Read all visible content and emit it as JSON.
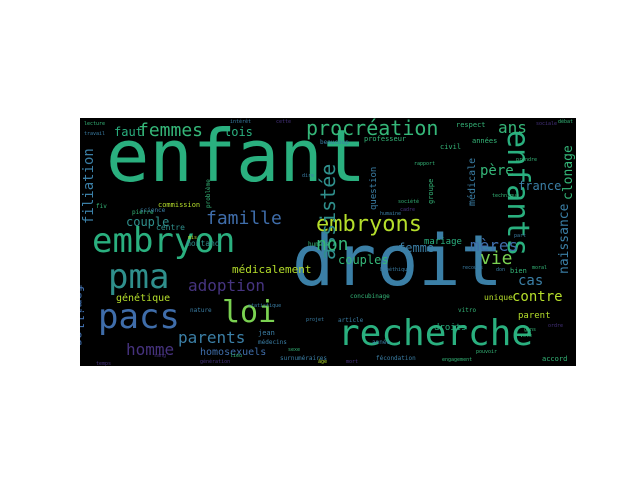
{
  "colors": {
    "background": "#000000",
    "page": "#ffffff"
  },
  "words": [
    {
      "text": "enfant",
      "size": 72,
      "color": "#2ab07f"
    },
    {
      "text": "droit",
      "size": 70,
      "color": "#3b7fa6"
    },
    {
      "text": "recherche",
      "size": 36,
      "color": "#2ab07f"
    },
    {
      "text": "embryon",
      "size": 34,
      "color": "#2ab07f"
    },
    {
      "text": "pacs",
      "size": 34,
      "color": "#3f6daa"
    },
    {
      "text": "pma",
      "size": 34,
      "color": "#2f8f8c"
    },
    {
      "text": "loi",
      "size": 30,
      "color": "#7ad151"
    },
    {
      "text": "enfants",
      "size": 30,
      "color": "#2ab07f"
    },
    {
      "text": "embryons",
      "size": 22,
      "color": "#b5de2b"
    },
    {
      "text": "procréation",
      "size": 20,
      "color": "#35b779"
    },
    {
      "text": "femmes",
      "size": 18,
      "color": "#35b779"
    },
    {
      "text": "famille",
      "size": 18,
      "color": "#3f6daa"
    },
    {
      "text": "assistée",
      "size": 20,
      "color": "#2f8f8c"
    },
    {
      "text": "vie",
      "size": 18,
      "color": "#7ad151"
    },
    {
      "text": "non",
      "size": 18,
      "color": "#35b779"
    },
    {
      "text": "mères",
      "size": 16,
      "color": "#3f6daa"
    },
    {
      "text": "adoption",
      "size": 16,
      "color": "#463480"
    },
    {
      "text": "parents",
      "size": 16,
      "color": "#3b7fa6"
    },
    {
      "text": "homme",
      "size": 16,
      "color": "#46327e"
    },
    {
      "text": "ans",
      "size": 16,
      "color": "#35b779"
    },
    {
      "text": "père",
      "size": 14,
      "color": "#35b779"
    },
    {
      "text": "cas",
      "size": 14,
      "color": "#3b7fa6"
    },
    {
      "text": "contre",
      "size": 14,
      "color": "#b5de2b"
    },
    {
      "text": "filiation",
      "size": 14,
      "color": "#3b7fa6"
    },
    {
      "text": "familles",
      "size": 13,
      "color": "#3f6daa"
    },
    {
      "text": "clonage",
      "size": 13,
      "color": "#35b779"
    },
    {
      "text": "naissance",
      "size": 13,
      "color": "#3b7fa6"
    },
    {
      "text": "faut",
      "size": 12,
      "color": "#2ab07f"
    },
    {
      "text": "lois",
      "size": 12,
      "color": "#2ab07f"
    },
    {
      "text": "couple",
      "size": 12,
      "color": "#2f8f8c"
    },
    {
      "text": "couples",
      "size": 12,
      "color": "#35b779"
    },
    {
      "text": "femme",
      "size": 12,
      "color": "#3b7fa6"
    },
    {
      "text": "france",
      "size": 12,
      "color": "#3b7fa6"
    },
    {
      "text": "médicalement",
      "size": 11,
      "color": "#b5de2b"
    },
    {
      "text": "génétique",
      "size": 10,
      "color": "#b5de2b"
    },
    {
      "text": "homosexuels",
      "size": 10,
      "color": "#3f6daa"
    },
    {
      "text": "médicale",
      "size": 10,
      "color": "#3b7fa6"
    },
    {
      "text": "mariage",
      "size": 9,
      "color": "#2ab07f"
    },
    {
      "text": "question",
      "size": 9,
      "color": "#3b7fa6"
    },
    {
      "text": "parent",
      "size": 9,
      "color": "#b5de2b"
    },
    {
      "text": "droits",
      "size": 9,
      "color": "#2ab07f"
    },
    {
      "text": "centre",
      "size": 8,
      "color": "#2f8f8c"
    },
    {
      "text": "montand",
      "size": 8,
      "color": "#2f8f8c"
    },
    {
      "text": "commission",
      "size": 7,
      "color": "#b5de2b"
    },
    {
      "text": "professeur",
      "size": 7,
      "color": "#35b779"
    },
    {
      "text": "civil",
      "size": 7,
      "color": "#35b779"
    },
    {
      "text": "années",
      "size": 7,
      "color": "#35b779"
    },
    {
      "text": "groupe",
      "size": 7,
      "color": "#35b779"
    },
    {
      "text": "unique",
      "size": 8,
      "color": "#b5de2b"
    },
    {
      "text": "accord",
      "size": 7,
      "color": "#35b779"
    },
    {
      "text": "bien",
      "size": 7,
      "color": "#35b779"
    },
    {
      "text": "respect",
      "size": 7,
      "color": "#35b779"
    },
    {
      "text": "beaucoup",
      "size": 6,
      "color": "#3b7fa6"
    },
    {
      "text": "humain",
      "size": 6,
      "color": "#35b779"
    },
    {
      "text": "pierre",
      "size": 6,
      "color": "#35b779"
    },
    {
      "text": "science",
      "size": 6,
      "color": "#3b7fa6"
    },
    {
      "text": "problème",
      "size": 6,
      "color": "#35b779"
    },
    {
      "text": "nature",
      "size": 6,
      "color": "#3b7fa6"
    },
    {
      "text": "jean",
      "size": 7,
      "color": "#3b7fa6"
    },
    {
      "text": "médecins",
      "size": 6,
      "color": "#3b7fa6"
    },
    {
      "text": "surnuméraires",
      "size": 6,
      "color": "#3b7fa6"
    },
    {
      "text": "fécondation",
      "size": 6,
      "color": "#3b7fa6"
    },
    {
      "text": "concubinage",
      "size": 6,
      "color": "#35b779"
    },
    {
      "text": "article",
      "size": 6,
      "color": "#3b7fa6"
    },
    {
      "text": "année",
      "size": 6,
      "color": "#3b7fa6"
    },
    {
      "text": "vitro",
      "size": 6,
      "color": "#35b779"
    },
    {
      "text": "prendre",
      "size": 5,
      "color": "#35b779"
    },
    {
      "text": "lecture",
      "size": 5,
      "color": "#35b779"
    },
    {
      "text": "intérêt",
      "size": 5,
      "color": "#3b7fa6"
    },
    {
      "text": "cette",
      "size": 5,
      "color": "#46327e"
    },
    {
      "text": "fiv",
      "size": 6,
      "color": "#35b779"
    },
    {
      "text": "mis",
      "size": 5,
      "color": "#b5de2b"
    },
    {
      "text": "recours",
      "size": 5,
      "color": "#3b7fa6"
    },
    {
      "text": "engagement",
      "size": 5,
      "color": "#35b779"
    },
    {
      "text": "pouvoir",
      "size": 5,
      "color": "#35b779"
    },
    {
      "text": "moral",
      "size": 5,
      "color": "#35b779"
    },
    {
      "text": "travail",
      "size": 5,
      "color": "#3b7fa6"
    },
    {
      "text": "statistique",
      "size": 5,
      "color": "#3b7fa6"
    },
    {
      "text": "génération",
      "size": 5,
      "color": "#46327e"
    },
    {
      "text": "technique",
      "size": 5,
      "color": "#35b779"
    },
    {
      "text": "cadre",
      "size": 5,
      "color": "#46327e"
    },
    {
      "text": "humaine",
      "size": 5,
      "color": "#3b7fa6"
    },
    {
      "text": "ordre",
      "size": 5,
      "color": "#46327e"
    },
    {
      "text": "gens",
      "size": 5,
      "color": "#35b779"
    },
    {
      "text": "don",
      "size": 5,
      "color": "#3b7fa6"
    },
    {
      "text": "sang",
      "size": 5,
      "color": "#46327e"
    },
    {
      "text": "lieu",
      "size": 5,
      "color": "#35b779"
    },
    {
      "text": "part",
      "size": 5,
      "color": "#3b7fa6"
    },
    {
      "text": "rapport",
      "size": 5,
      "color": "#35b779"
    },
    {
      "text": "dire",
      "size": 5,
      "color": "#3b7fa6"
    },
    {
      "text": "temps",
      "size": 5,
      "color": "#46327e"
    },
    {
      "text": "société",
      "size": 5,
      "color": "#35b779"
    },
    {
      "text": "bioéthique",
      "size": 5,
      "color": "#3b7fa6"
    },
    {
      "text": "débat",
      "size": 5,
      "color": "#35b779"
    },
    {
      "text": "sociale",
      "size": 5,
      "color": "#46327e"
    },
    {
      "text": "vote",
      "size": 5,
      "color": "#35b779"
    },
    {
      "text": "projet",
      "size": 5,
      "color": "#3b7fa6"
    },
    {
      "text": "sexe",
      "size": 5,
      "color": "#35b779"
    },
    {
      "text": "mort",
      "size": 5,
      "color": "#46327e"
    },
    {
      "text": "âge",
      "size": 5,
      "color": "#b5de2b"
    }
  ]
}
